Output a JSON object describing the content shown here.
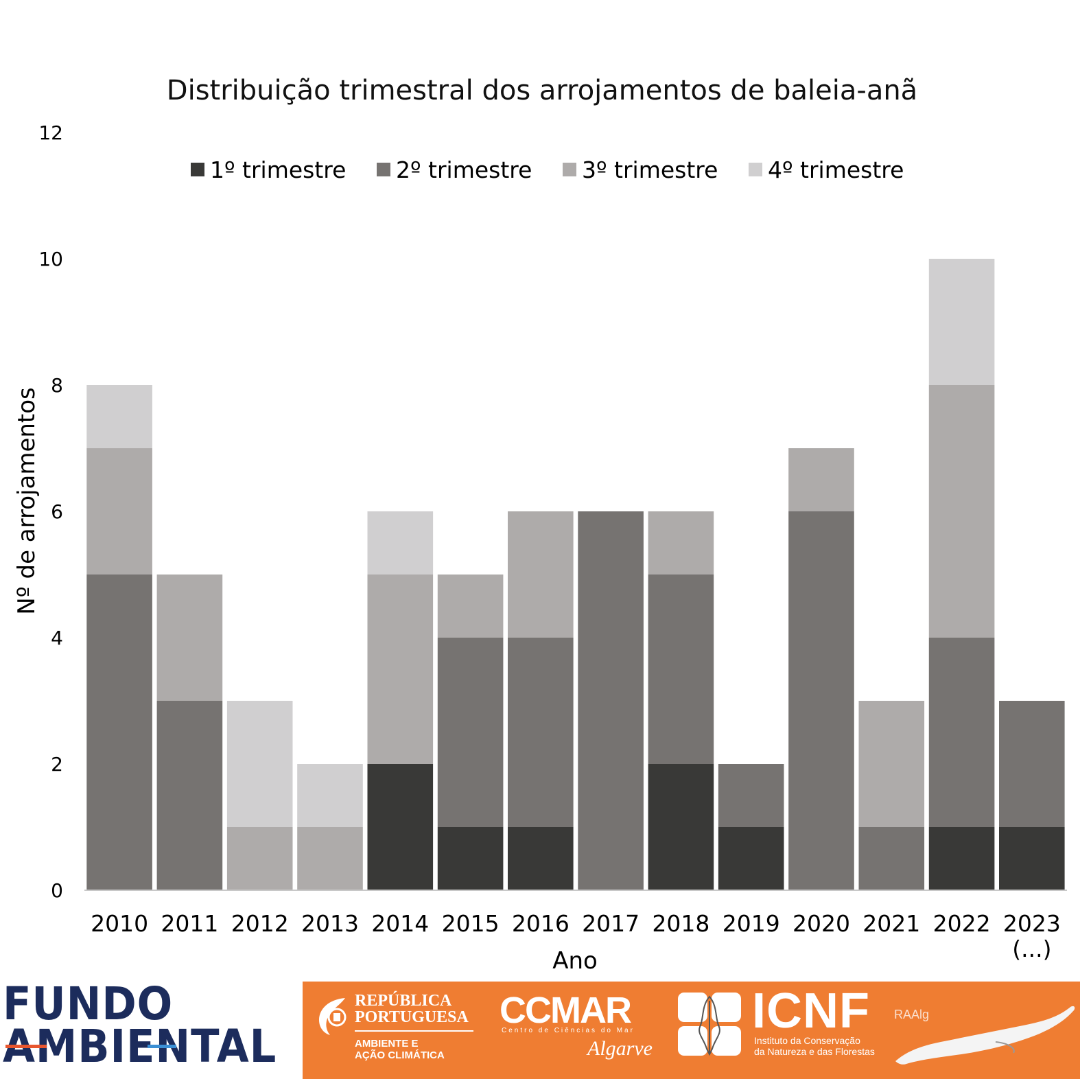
{
  "chart_data": {
    "type": "bar",
    "stacked": true,
    "title": "Distribuição trimestral dos arrojamentos de baleia-anã",
    "xlabel": "Ano",
    "ylabel": "Nº de arrojamentos",
    "ylim": [
      0,
      12
    ],
    "yticks": [
      "0",
      "2",
      "4",
      "6",
      "8",
      "10",
      "12"
    ],
    "grid": false,
    "legend_position": "top",
    "categories": [
      "2010",
      "2011",
      "2012",
      "2013",
      "2014",
      "2015",
      "2016",
      "2017",
      "2018",
      "2019",
      "2020",
      "2021",
      "2022",
      "2023\n(...)"
    ],
    "category_labels": [
      [
        "2010"
      ],
      [
        "2011"
      ],
      [
        "2012"
      ],
      [
        "2013"
      ],
      [
        "2014"
      ],
      [
        "2015"
      ],
      [
        "2016"
      ],
      [
        "2017"
      ],
      [
        "2018"
      ],
      [
        "2019"
      ],
      [
        "2020"
      ],
      [
        "2021"
      ],
      [
        "2022"
      ],
      [
        "2023",
        "(...)"
      ]
    ],
    "series": [
      {
        "name": "1º trimestre",
        "color": "#393937",
        "values": [
          0,
          0,
          0,
          0,
          2,
          1,
          1,
          0,
          2,
          1,
          0,
          0,
          1,
          1
        ]
      },
      {
        "name": "2º trimestre",
        "color": "#767371",
        "values": [
          5,
          3,
          0,
          0,
          0,
          3,
          3,
          6,
          3,
          1,
          6,
          1,
          3,
          2
        ]
      },
      {
        "name": "3º trimestre",
        "color": "#aeabaa",
        "values": [
          2,
          2,
          1,
          1,
          3,
          1,
          2,
          0,
          1,
          0,
          1,
          2,
          4,
          0
        ]
      },
      {
        "name": "4º trimestre",
        "color": "#d0cfd0",
        "values": [
          1,
          0,
          2,
          1,
          1,
          0,
          0,
          0,
          0,
          0,
          0,
          0,
          2,
          0
        ]
      }
    ]
  },
  "footer": {
    "fundo_line1": "FUNDO",
    "fundo_line2": "AMBIENTAL",
    "republica_line1": "REPÚBLICA",
    "republica_line2": "PORTUGUESA",
    "ambiente_line1": "AMBIENTE E",
    "ambiente_line2": "AÇÃO CLIMÁTICA",
    "ccmar": "CCMAR",
    "ccmar_sub": "Centro de Ciências do Mar",
    "ccmar_script": "Algarve",
    "icnf": "ICNF",
    "icnf_sub1": "Instituto da Conservação",
    "icnf_sub2": "da Natureza e das Florestas",
    "raalg": "RAAlg",
    "colors": {
      "orange": "#ef7d32",
      "navy": "#1c2c5c",
      "fundo_red": "#e8562e",
      "fundo_blue": "#3b8fd4"
    }
  }
}
